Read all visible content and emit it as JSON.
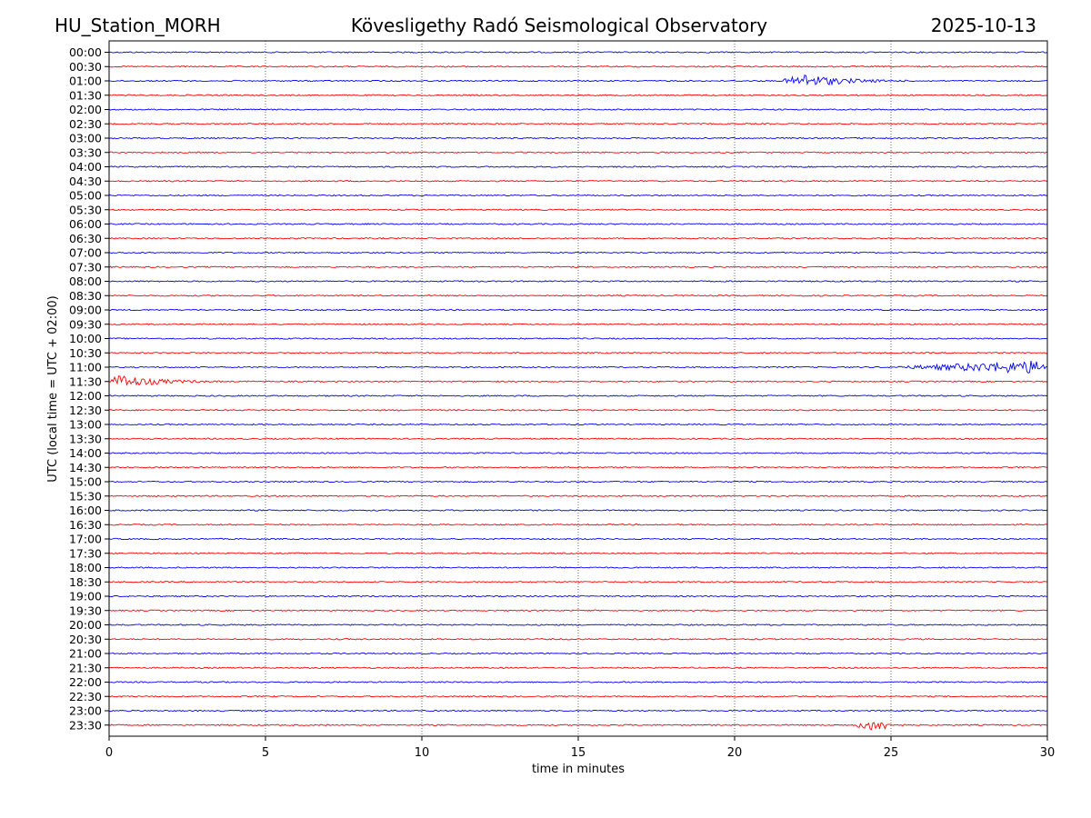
{
  "chart_data": {
    "type": "line",
    "title": "Kövesligethy Radó Seismological Observatory",
    "station": "HU_Station_MORH",
    "date": "2025-10-13",
    "xlabel": "time in minutes",
    "ylabel": "UTC (local time = UTC + 02:00)",
    "xlim": [
      0,
      30
    ],
    "x_ticks": [
      0,
      5,
      10,
      15,
      20,
      25,
      30
    ],
    "grid": "vertical dotted lines at 5-minute ticks",
    "colors": {
      "even_trace": "#0000ff",
      "odd_trace": "#ff0000"
    },
    "rows": [
      "00:00",
      "00:30",
      "01:00",
      "01:30",
      "02:00",
      "02:30",
      "03:00",
      "03:30",
      "04:00",
      "04:30",
      "05:00",
      "05:30",
      "06:00",
      "06:30",
      "07:00",
      "07:30",
      "08:00",
      "08:30",
      "09:00",
      "09:30",
      "10:00",
      "10:30",
      "11:00",
      "11:30",
      "12:00",
      "12:30",
      "13:00",
      "13:30",
      "14:00",
      "14:30",
      "15:00",
      "15:30",
      "16:00",
      "16:30",
      "17:00",
      "17:30",
      "18:00",
      "18:30",
      "19:00",
      "19:30",
      "20:00",
      "20:30",
      "21:00",
      "21:30",
      "22:00",
      "22:30",
      "23:00",
      "23:30"
    ],
    "events": [
      {
        "row": "01:00",
        "start_min": 21.5,
        "peak_min": 22.2,
        "end_min": 26
      },
      {
        "row": "11:00",
        "start_min": 25.2,
        "peak_min": 29.9,
        "end_min": 30
      },
      {
        "row": "11:30",
        "start_min": 0,
        "peak_min": 0.3,
        "end_min": 4
      },
      {
        "row": "23:30",
        "start_min": 23.8,
        "peak_min": 24.6,
        "end_min": 25.6
      }
    ]
  }
}
